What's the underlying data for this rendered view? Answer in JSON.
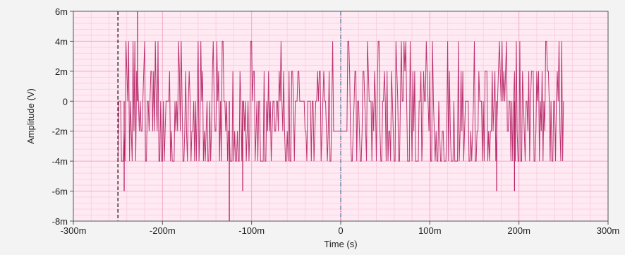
{
  "chart_data": {
    "type": "line",
    "title": "",
    "xlabel": "Time (s)",
    "ylabel": "Amplitude (V)",
    "xlim": [
      -0.3,
      0.3
    ],
    "ylim": [
      -0.008,
      0.006
    ],
    "grid": true,
    "legend": "none",
    "x_ticks": [
      {
        "value": -0.3,
        "label": "-300m"
      },
      {
        "value": -0.2,
        "label": "-200m"
      },
      {
        "value": -0.1,
        "label": "-100m"
      },
      {
        "value": 0.0,
        "label": "0"
      },
      {
        "value": 0.1,
        "label": "100m"
      },
      {
        "value": 0.2,
        "label": "200m"
      },
      {
        "value": 0.3,
        "label": "300m"
      }
    ],
    "y_ticks": [
      {
        "value": 0.006,
        "label": "6m"
      },
      {
        "value": 0.004,
        "label": "4m"
      },
      {
        "value": 0.002,
        "label": "2m"
      },
      {
        "value": 0.0,
        "label": "0"
      },
      {
        "value": -0.002,
        "label": "-2m"
      },
      {
        "value": -0.004,
        "label": "-4m"
      },
      {
        "value": -0.006,
        "label": "-6m"
      },
      {
        "value": -0.008,
        "label": "-8m"
      }
    ],
    "series": [
      {
        "color": "#b0145a",
        "x_start": -0.25,
        "x_end": 0.25,
        "sample_interval": 0.001,
        "quantization_step": 0.002,
        "typical_range": [
          -0.004,
          0.004
        ],
        "extremes": {
          "max": 0.006,
          "min": -0.008
        }
      }
    ],
    "cursors": [
      {
        "x": -0.25,
        "style": "dashed",
        "color": "#111111"
      },
      {
        "x": 0.0,
        "style": "dash-dot",
        "color": "#5a7fa0"
      }
    ]
  },
  "colors": {
    "background": "#f3f3f3",
    "plot_background": "#ffeaf3",
    "major_grid": "#f1a9c9",
    "minor_grid": "#f8d1e2",
    "axis": "#555555",
    "text": "#222222"
  }
}
